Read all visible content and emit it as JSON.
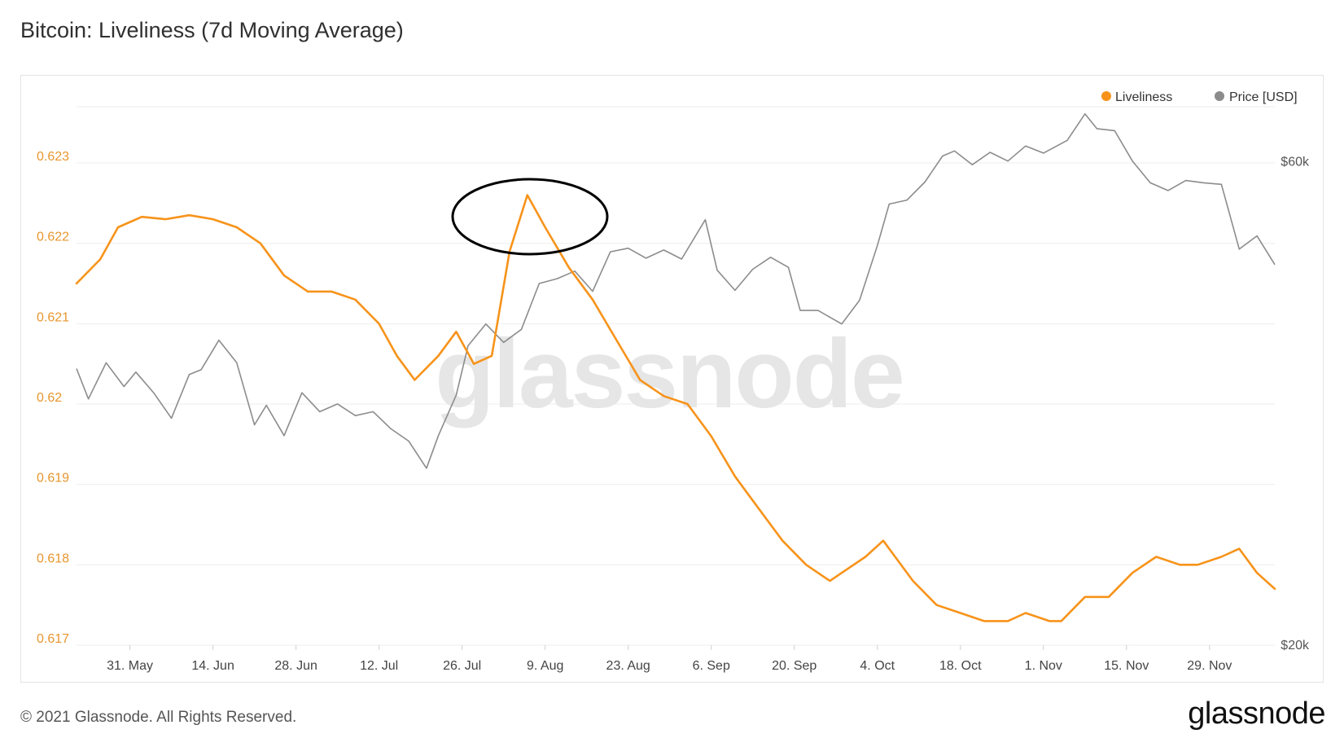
{
  "title": "Bitcoin: Liveliness (7d Moving Average)",
  "footer": {
    "copyright": "© 2021 Glassnode. All Rights Reserved.",
    "logo_text": "glassnode"
  },
  "watermark": "glassnode",
  "colors": {
    "liveliness": "#f7931a",
    "price": "#8c8c8c",
    "grid": "#eeeeee",
    "annotation": "#000000"
  },
  "chart_data": {
    "type": "line",
    "title": "Bitcoin: Liveliness (7d Moving Average)",
    "legend_position": "top-right",
    "grid": true,
    "x_range": [
      "2021-05-22",
      "2021-12-10"
    ],
    "x_tick_labels": [
      "31. May",
      "14. Jun",
      "28. Jun",
      "12. Jul",
      "26. Jul",
      "9. Aug",
      "23. Aug",
      "6. Sep",
      "20. Sep",
      "4. Oct",
      "18. Oct",
      "1. Nov",
      "15. Nov",
      "29. Nov"
    ],
    "x_tick_dates": [
      "2021-05-31",
      "2021-06-14",
      "2021-06-28",
      "2021-07-12",
      "2021-07-26",
      "2021-08-09",
      "2021-08-23",
      "2021-09-06",
      "2021-09-20",
      "2021-10-04",
      "2021-10-18",
      "2021-11-01",
      "2021-11-15",
      "2021-11-29"
    ],
    "y_left": {
      "label": "",
      "ticks": [
        "0.617",
        "0.618",
        "0.619",
        "0.62",
        "0.621",
        "0.622",
        "0.623"
      ],
      "range": [
        0.617,
        0.6237
      ]
    },
    "y_right": {
      "label": "",
      "ticks": [
        "$20k",
        "$60k"
      ],
      "scale": "log",
      "range": [
        20000,
        68000
      ]
    },
    "series": [
      {
        "name": "Liveliness",
        "axis": "left",
        "x": [
          "2021-05-22",
          "2021-05-26",
          "2021-05-29",
          "2021-06-02",
          "2021-06-06",
          "2021-06-10",
          "2021-06-14",
          "2021-06-18",
          "2021-06-22",
          "2021-06-26",
          "2021-06-30",
          "2021-07-04",
          "2021-07-08",
          "2021-07-12",
          "2021-07-15",
          "2021-07-18",
          "2021-07-22",
          "2021-07-25",
          "2021-07-28",
          "2021-07-31",
          "2021-08-03",
          "2021-08-06",
          "2021-08-09",
          "2021-08-13",
          "2021-08-17",
          "2021-08-21",
          "2021-08-25",
          "2021-08-29",
          "2021-09-02",
          "2021-09-06",
          "2021-09-10",
          "2021-09-14",
          "2021-09-18",
          "2021-09-22",
          "2021-09-26",
          "2021-09-28",
          "2021-10-02",
          "2021-10-05",
          "2021-10-07",
          "2021-10-10",
          "2021-10-14",
          "2021-10-18",
          "2021-10-22",
          "2021-10-26",
          "2021-10-29",
          "2021-11-02",
          "2021-11-04",
          "2021-11-08",
          "2021-11-12",
          "2021-11-16",
          "2021-11-20",
          "2021-11-24",
          "2021-11-27",
          "2021-12-01",
          "2021-12-04",
          "2021-12-07",
          "2021-12-10"
        ],
        "y": [
          0.6215,
          0.6218,
          0.6222,
          0.62233,
          0.6223,
          0.62235,
          0.6223,
          0.6222,
          0.622,
          0.6216,
          0.6214,
          0.6214,
          0.6213,
          0.621,
          0.6206,
          0.6203,
          0.6206,
          0.6209,
          0.6205,
          0.6206,
          0.6219,
          0.6226,
          0.6222,
          0.6217,
          0.6213,
          0.6208,
          0.6203,
          0.6201,
          0.62,
          0.6196,
          0.6191,
          0.6187,
          0.6183,
          0.618,
          0.6178,
          0.6179,
          0.6181,
          0.6183,
          0.6181,
          0.6178,
          0.6175,
          0.6174,
          0.6173,
          0.6173,
          0.6174,
          0.6173,
          0.6173,
          0.6176,
          0.6176,
          0.6179,
          0.6181,
          0.618,
          0.618,
          0.6181,
          0.6182,
          0.6179,
          0.6177
        ]
      },
      {
        "name": "Price [USD]",
        "axis": "right",
        "x": [
          "2021-05-22",
          "2021-05-24",
          "2021-05-27",
          "2021-05-30",
          "2021-06-01",
          "2021-06-04",
          "2021-06-07",
          "2021-06-10",
          "2021-06-12",
          "2021-06-15",
          "2021-06-18",
          "2021-06-21",
          "2021-06-23",
          "2021-06-26",
          "2021-06-29",
          "2021-07-02",
          "2021-07-05",
          "2021-07-08",
          "2021-07-11",
          "2021-07-14",
          "2021-07-17",
          "2021-07-20",
          "2021-07-22",
          "2021-07-25",
          "2021-07-27",
          "2021-07-30",
          "2021-08-02",
          "2021-08-05",
          "2021-08-08",
          "2021-08-11",
          "2021-08-14",
          "2021-08-17",
          "2021-08-20",
          "2021-08-23",
          "2021-08-26",
          "2021-08-29",
          "2021-09-01",
          "2021-09-05",
          "2021-09-07",
          "2021-09-10",
          "2021-09-13",
          "2021-09-16",
          "2021-09-19",
          "2021-09-21",
          "2021-09-24",
          "2021-09-28",
          "2021-10-01",
          "2021-10-04",
          "2021-10-06",
          "2021-10-09",
          "2021-10-12",
          "2021-10-15",
          "2021-10-17",
          "2021-10-20",
          "2021-10-23",
          "2021-10-26",
          "2021-10-29",
          "2021-11-01",
          "2021-11-05",
          "2021-11-08",
          "2021-11-10",
          "2021-11-13",
          "2021-11-16",
          "2021-11-19",
          "2021-11-22",
          "2021-11-25",
          "2021-11-28",
          "2021-12-01",
          "2021-12-04",
          "2021-12-07",
          "2021-12-10"
        ],
        "y": [
          37500,
          35000,
          38000,
          36000,
          37200,
          35500,
          33500,
          37000,
          37400,
          40000,
          38000,
          33000,
          34500,
          32200,
          35500,
          34000,
          34600,
          33700,
          34000,
          32700,
          31800,
          29900,
          32200,
          35300,
          39500,
          41500,
          39800,
          41000,
          45500,
          46000,
          46800,
          44700,
          48900,
          49300,
          48200,
          49100,
          48100,
          52600,
          46900,
          44800,
          47000,
          48300,
          47200,
          42800,
          42800,
          41500,
          43800,
          49600,
          54500,
          55000,
          57300,
          60800,
          61500,
          59600,
          61300,
          60100,
          62200,
          61200,
          63000,
          66900,
          64700,
          64400,
          60100,
          57200,
          56200,
          57500,
          57200,
          57000,
          49200,
          50700,
          47500
        ]
      }
    ]
  }
}
